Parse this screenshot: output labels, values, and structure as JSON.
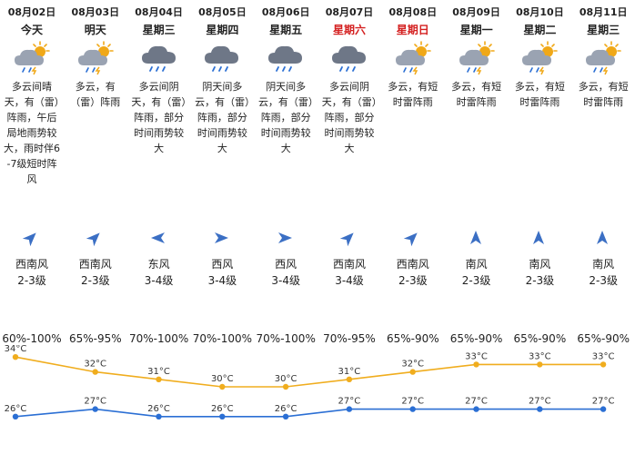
{
  "days": [
    {
      "date": "08月02日",
      "weekday": "今天",
      "weekend": false,
      "icon": "partly-cloudy-thunder-icon",
      "desc": "多云间晴天，有（雷）阵雨，午后局地雨势较大，雨时伴6-7级短时阵风",
      "wind_dir": "西南风",
      "wind_level": "2-3级",
      "arrow": "southwest-arrow-icon",
      "humidity": "60%-100%",
      "high": "34°C",
      "low": "26°C"
    },
    {
      "date": "08月03日",
      "weekday": "明天",
      "weekend": false,
      "icon": "partly-cloudy-thunder-icon",
      "desc": "多云，有（雷）阵雨",
      "wind_dir": "西南风",
      "wind_level": "2-3级",
      "arrow": "southwest-arrow-icon",
      "humidity": "65%-95%",
      "high": "32°C",
      "low": "27°C"
    },
    {
      "date": "08月04日",
      "weekday": "星期三",
      "weekend": false,
      "icon": "rain-cloud-icon",
      "desc": "多云间阴天，有（雷）阵雨，部分时间雨势较大",
      "wind_dir": "东风",
      "wind_level": "3-4级",
      "arrow": "east-arrow-icon",
      "humidity": "70%-100%",
      "high": "31°C",
      "low": "26°C"
    },
    {
      "date": "08月05日",
      "weekday": "星期四",
      "weekend": false,
      "icon": "rain-cloud-icon",
      "desc": "阴天间多云，有（雷）阵雨，部分时间雨势较大",
      "wind_dir": "西风",
      "wind_level": "3-4级",
      "arrow": "west-arrow-icon",
      "humidity": "70%-100%",
      "high": "30°C",
      "low": "26°C"
    },
    {
      "date": "08月06日",
      "weekday": "星期五",
      "weekend": false,
      "icon": "rain-cloud-icon",
      "desc": "阴天间多云，有（雷）阵雨，部分时间雨势较大",
      "wind_dir": "西风",
      "wind_level": "3-4级",
      "arrow": "west-arrow-icon",
      "humidity": "70%-100%",
      "high": "30°C",
      "low": "26°C"
    },
    {
      "date": "08月07日",
      "weekday": "星期六",
      "weekend": true,
      "icon": "rain-cloud-icon",
      "desc": "多云间阴天，有（雷）阵雨，部分时间雨势较大",
      "wind_dir": "西南风",
      "wind_level": "3-4级",
      "arrow": "southwest-arrow-icon",
      "humidity": "70%-95%",
      "high": "31°C",
      "low": "27°C"
    },
    {
      "date": "08月08日",
      "weekday": "星期日",
      "weekend": true,
      "icon": "partly-cloudy-thunder-icon",
      "desc": "多云，有短时雷阵雨",
      "wind_dir": "西南风",
      "wind_level": "2-3级",
      "arrow": "southwest-arrow-icon",
      "humidity": "65%-90%",
      "high": "32°C",
      "low": "27°C"
    },
    {
      "date": "08月09日",
      "weekday": "星期一",
      "weekend": false,
      "icon": "partly-cloudy-thunder-icon",
      "desc": "多云，有短时雷阵雨",
      "wind_dir": "南风",
      "wind_level": "2-3级",
      "arrow": "south-arrow-icon",
      "humidity": "65%-90%",
      "high": "33°C",
      "low": "27°C"
    },
    {
      "date": "08月10日",
      "weekday": "星期二",
      "weekend": false,
      "icon": "partly-cloudy-thunder-icon",
      "desc": "多云，有短时雷阵雨",
      "wind_dir": "南风",
      "wind_level": "2-3级",
      "arrow": "south-arrow-icon",
      "humidity": "65%-90%",
      "high": "33°C",
      "low": "27°C"
    },
    {
      "date": "08月11日",
      "weekday": "星期三",
      "weekend": false,
      "icon": "partly-cloudy-thunder-icon",
      "desc": "多云，有短时雷阵雨",
      "wind_dir": "南风",
      "wind_level": "2-3级",
      "arrow": "south-arrow-icon",
      "humidity": "65%-90%",
      "high": "33°C",
      "low": "27°C"
    }
  ],
  "chart_data": {
    "type": "line",
    "categories": [
      "08月02日",
      "08月03日",
      "08月04日",
      "08月05日",
      "08月06日",
      "08月07日",
      "08月08日",
      "08月09日",
      "08月10日",
      "08月11日"
    ],
    "series": [
      {
        "values": [
          34,
          32,
          31,
          30,
          30,
          31,
          32,
          33,
          33,
          33
        ],
        "color": "#f0ad1e"
      },
      {
        "values": [
          26,
          27,
          26,
          26,
          26,
          27,
          27,
          27,
          27,
          27
        ],
        "color": "#2b6fd4"
      }
    ],
    "unit": "°C",
    "ylim": [
      25,
      35
    ],
    "grid": false
  },
  "colors": {
    "weekend": "#d42020",
    "high_line": "#f0ad1e",
    "low_line": "#2b6fd4",
    "cloud": "#6e7787",
    "sun": "#f0a818"
  }
}
